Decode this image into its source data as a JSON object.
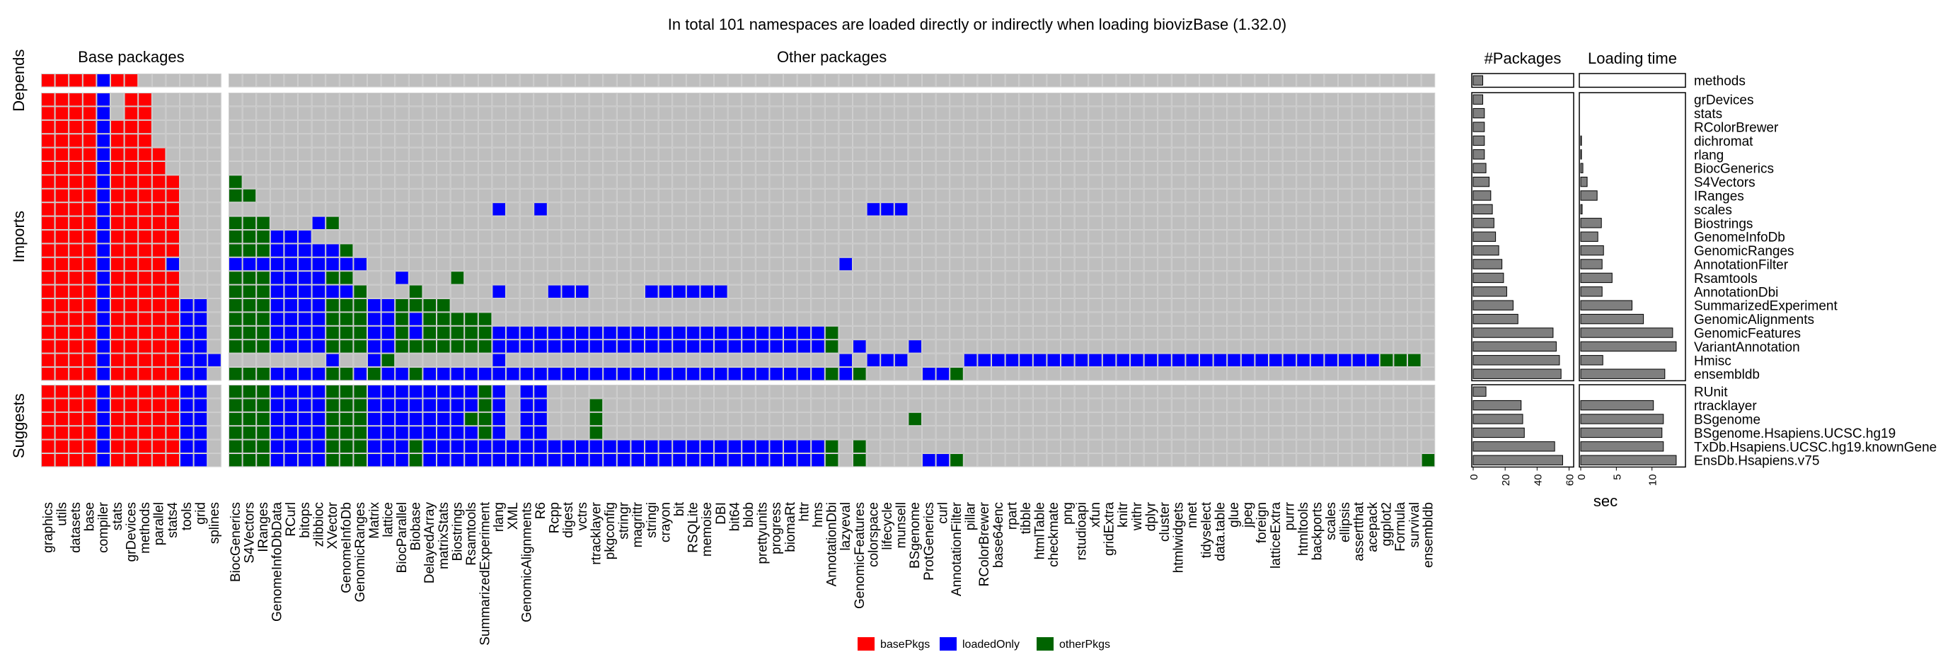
{
  "chart_data": {
    "type": "heatmap",
    "title": "In total 101 namespaces are loaded directly or indirectly when loading biovizBase (1.32.0)",
    "column_groups": [
      {
        "label": "Base packages",
        "columns": [
          "graphics",
          "utils",
          "datasets",
          "base",
          "compiler",
          "stats",
          "grDevices",
          "methods",
          "parallel",
          "stats4",
          "tools",
          "grid",
          "splines"
        ]
      },
      {
        "label": "Other packages",
        "columns": [
          "BiocGenerics",
          "S4Vectors",
          "IRanges",
          "GenomeInfoDbData",
          "RCurl",
          "bitops",
          "zlibbioc",
          "XVector",
          "GenomeInfoDb",
          "GenomicRanges",
          "Matrix",
          "lattice",
          "BiocParallel",
          "Biobase",
          "DelayedArray",
          "matrixStats",
          "Biostrings",
          "Rsamtools",
          "SummarizedExperiment",
          "rlang",
          "XML",
          "GenomicAlignments",
          "R6",
          "Rcpp",
          "digest",
          "vctrs",
          "rtracklayer",
          "pkgconfig",
          "stringr",
          "magrittr",
          "stringi",
          "crayon",
          "bit",
          "RSQLite",
          "memoise",
          "DBI",
          "bit64",
          "blob",
          "prettyunits",
          "progress",
          "biomaRt",
          "httr",
          "hms",
          "AnnotationDbi",
          "lazyeval",
          "GenomicFeatures",
          "colorspace",
          "lifecycle",
          "munsell",
          "BSgenome",
          "ProtGenerics",
          "curl",
          "AnnotationFilter",
          "pillar",
          "RColorBrewer",
          "base64enc",
          "rpart",
          "tibble",
          "htmlTable",
          "checkmate",
          "png",
          "rstudioapi",
          "xfun",
          "gridExtra",
          "knitr",
          "withr",
          "dplyr",
          "cluster",
          "htmlwidgets",
          "nnet",
          "tidyselect",
          "data.table",
          "glue",
          "jpeg",
          "foreign",
          "latticeExtra",
          "purrr",
          "htmltools",
          "backports",
          "scales",
          "ellipsis",
          "assertthat",
          "acepack",
          "ggplot2",
          "Formula",
          "survival",
          "ensembldb"
        ]
      }
    ],
    "row_groups": [
      {
        "label": "Depends",
        "rows": [
          "methods"
        ]
      },
      {
        "label": "Imports",
        "rows": [
          "grDevices",
          "stats",
          "RColorBrewer",
          "dichromat",
          "rlang",
          "BiocGenerics",
          "S4Vectors",
          "IRanges",
          "scales",
          "Biostrings",
          "GenomeInfoDb",
          "GenomicRanges",
          "AnnotationFilter",
          "Rsamtools",
          "AnnotationDbi",
          "SummarizedExperiment",
          "GenomicAlignments",
          "GenomicFeatures",
          "VariantAnnotation",
          "Hmisc",
          "ensembldb"
        ]
      },
      {
        "label": "Suggests",
        "rows": [
          "RUnit",
          "rtracklayer",
          "BSgenome",
          "BSgenome.Hsapiens.UCSC.hg19",
          "TxDb.Hsapiens.UCSC.hg19.knownGene",
          "EnsDb.Hsapiens.v75"
        ]
      }
    ],
    "legend": {
      "position": "bottom",
      "items": [
        {
          "key": "basePkgs",
          "label": "basePkgs",
          "color": "#ff0000"
        },
        {
          "key": "loadedOnly",
          "label": "loadedOnly",
          "color": "#0000ff"
        },
        {
          "key": "otherPkgs",
          "label": "otherPkgs",
          "color": "#006400"
        }
      ],
      "empty_color": "#bebebe"
    },
    "cells": {
      "methods": {
        "base": "0-3:b,4:l,5-6:b",
        "other": ""
      },
      "grDevices": {
        "base": "0-3:b,4:l,6-7:b",
        "other": ""
      },
      "stats": {
        "base": "0-3:b,4:l,6-7:b",
        "other": ""
      },
      "RColorBrewer": {
        "base": "0-3:b,4:l,5-7:b",
        "other": ""
      },
      "dichromat": {
        "base": "0-3:b,4:l,5-7:b",
        "other": ""
      },
      "rlang": {
        "base": "0-3:b,4:l,5-8:b",
        "other": ""
      },
      "BiocGenerics": {
        "base": "0-3:b,4:l,5-8:b",
        "other": ""
      },
      "S4Vectors": {
        "base": "0-3:b,4:l,5-9:b",
        "other": "0:o"
      },
      "IRanges": {
        "base": "0-3:b,4:l,5-9:b",
        "other": "0-1:o"
      },
      "scales": {
        "base": "0-3:b,4:l,5-9:b",
        "other": "19:l,22:l,46-48:l"
      },
      "Biostrings": {
        "base": "0-3:b,4:l,5-9:b",
        "other": "0-2:o,6:l,7:o"
      },
      "GenomeInfoDb": {
        "base": "0-3:b,4:l,5-9:b",
        "other": "0-2:o,3-5:l"
      },
      "GenomicRanges": {
        "base": "0-3:b,4:l,5-9:b",
        "other": "0-2:o,3-7:l,8:o"
      },
      "AnnotationFilter": {
        "base": "0-3:b,4:l,5-8:b,9:l",
        "other": "0-2:l,3-9:l,44:l"
      },
      "Rsamtools": {
        "base": "0-3:b,4:l,5-9:b",
        "other": "0-2:o,3-6:l,7-8:o,12:l,16:o"
      },
      "AnnotationDbi": {
        "base": "0-3:b,4:l,5-9:b",
        "other": "0-2:o,3-8:l,9:o,13:o,19:l,23-25:l,30-35:l"
      },
      "SummarizedExperiment": {
        "base": "0-3:b,4:l,5-9:b,10-11:l",
        "other": "0-2:o,3-6:l,7-9:o,10-11:l,12:o,13-15:o"
      },
      "GenomicAlignments": {
        "base": "0-3:b,4:l,5-9:b,10-11:l",
        "other": "0-2:o,3-6:l,7-9:o,10-11:l,12:o,13:l,14-17:o,18:o"
      },
      "GenomicFeatures": {
        "base": "0-3:b,4:l,5-9:b,10-11:l",
        "other": "0-2:o,3-6:l,7-9:o,10-11:l,12:o,13:l,14-17:o,18:o,19-42:l,43:o"
      },
      "VariantAnnotation": {
        "base": "0-3:b,4:l,5-9:b,10-11:l",
        "other": "0-2:o,3-6:l,7-9:o,10-11:l,12:o,13-17:o,18:o,19-42:l,43:o,45:l,49:l"
      },
      "Hmisc": {
        "base": "0-3:b,4:l,5-9:b,10-12:l",
        "other": "7:l,10:l,11:o,19:l,44:l,46-48:l,53-82:l,83-85:o"
      },
      "ensembldb": {
        "base": "0-3:b,4:l,5-9:b,10-11:l",
        "other": "0-2:o,3-6:l,7-8:o,9:l,10:o,11-12:l,13:o,14-42:l,43:o,44:l,45:o,50-51:l,52:o"
      },
      "RUnit": {
        "base": "0-3:b,4:l,5-9:b,10-11:l",
        "other": "0-2:o,3-6:l,7-9:o,10-11:l,12-17:l,18:o,19:l,21-22:l"
      },
      "rtracklayer": {
        "base": "0-3:b,4:l,5-9:b,10-11:l",
        "other": "0-2:o,3-6:l,7-9:o,10-11:l,12-17:l,18:o,19:l,21-22:l,26:o"
      },
      "BSgenome": {
        "base": "0-3:b,4:l,5-9:b,10-11:l",
        "other": "0-2:o,3-6:l,7-9:o,10-11:l,12-16:l,17:o,18:o,19:l,21-22:l,26:o,49:o"
      },
      "BSgenome.Hsapiens.UCSC.hg19": {
        "base": "0-3:b,4:l,5-9:b,10-11:l",
        "other": "0-2:o,3-6:l,7-9:o,10-11:l,12-17:l,18:o,19:l,21-22:l,26:o"
      },
      "TxDb.Hsapiens.UCSC.hg19.knownGene": {
        "base": "0-3:b,4:l,5-9:b,10-11:l",
        "other": "0-2:o,3-6:l,7-9:o,10-11:l,12:l,13:o,14-42:l,43:o,45:o"
      },
      "EnsDb.Hsapiens.v75": {
        "base": "0-3:b,4:l,5-9:b,10-11:l",
        "other": "0-2:o,3-6:l,7-9:o,10-11:l,12:l,13:o,14-42:l,43:o,45:o,50-51:l,52:o,86:o"
      }
    },
    "packages_panel": {
      "title": "#Packages",
      "xlim": [
        0,
        62
      ],
      "ticks": [
        0,
        20,
        40,
        60
      ],
      "values": {
        "methods": 6,
        "grDevices": 6,
        "stats": 7,
        "RColorBrewer": 7,
        "dichromat": 7,
        "rlang": 7,
        "BiocGenerics": 8,
        "S4Vectors": 10,
        "IRanges": 11,
        "scales": 12,
        "Biostrings": 13,
        "GenomeInfoDb": 14,
        "GenomicRanges": 16,
        "AnnotationFilter": 18,
        "Rsamtools": 19,
        "AnnotationDbi": 21,
        "SummarizedExperiment": 25,
        "GenomicAlignments": 28,
        "GenomicFeatures": 50,
        "VariantAnnotation": 52,
        "Hmisc": 54,
        "ensembldb": 55,
        "RUnit": 8,
        "rtracklayer": 30,
        "BSgenome": 31,
        "BSgenome.Hsapiens.UCSC.hg19": 32,
        "TxDb.Hsapiens.UCSC.hg19.knownGene": 51,
        "EnsDb.Hsapiens.v75": 56
      }
    },
    "loading_time_panel": {
      "title": "Loading time",
      "xlabel": "sec",
      "xlim": [
        0,
        14.5
      ],
      "ticks": [
        0,
        5,
        10
      ],
      "values": {
        "methods": 0,
        "grDevices": 0,
        "stats": 0,
        "RColorBrewer": 0,
        "dichromat": 0.1,
        "rlang": 0.1,
        "BiocGenerics": 0.3,
        "S4Vectors": 0.9,
        "IRanges": 2.3,
        "scales": 0.2,
        "Biostrings": 2.9,
        "GenomeInfoDb": 2.4,
        "GenomicRanges": 3.2,
        "AnnotationFilter": 3.0,
        "Rsamtools": 4.4,
        "AnnotationDbi": 3.0,
        "SummarizedExperiment": 7.2,
        "GenomicAlignments": 8.8,
        "GenomicFeatures": 12.9,
        "VariantAnnotation": 13.4,
        "Hmisc": 3.1,
        "ensembldb": 11.8,
        "RUnit": 0,
        "rtracklayer": 10.2,
        "BSgenome": 11.6,
        "BSgenome.Hsapiens.UCSC.hg19": 11.4,
        "TxDb.Hsapiens.UCSC.hg19.knownGene": 11.6,
        "EnsDb.Hsapiens.v75": 13.4
      }
    }
  }
}
